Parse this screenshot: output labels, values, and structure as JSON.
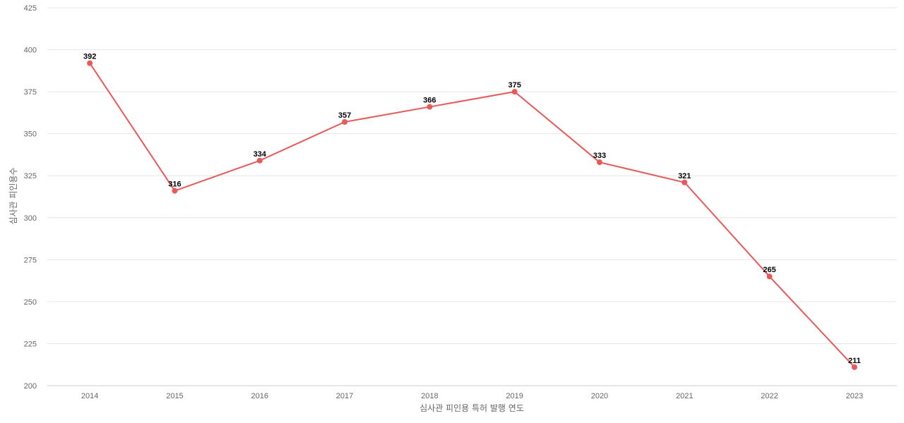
{
  "chart_data": {
    "type": "line",
    "categories": [
      "2014",
      "2015",
      "2016",
      "2017",
      "2018",
      "2019",
      "2020",
      "2021",
      "2022",
      "2023"
    ],
    "series": [
      {
        "values": [
          392,
          316,
          334,
          357,
          366,
          375,
          333,
          321,
          265,
          211
        ],
        "color": "#e8595a"
      }
    ],
    "xlabel": "심사관 피인용 특허 발행 연도",
    "ylabel": "심사관 피인용수",
    "ylim": [
      200,
      425
    ],
    "yticks": [
      200,
      225,
      250,
      275,
      300,
      325,
      350,
      375,
      400,
      425
    ],
    "grid": true,
    "data_labels": true,
    "legend": "none"
  }
}
